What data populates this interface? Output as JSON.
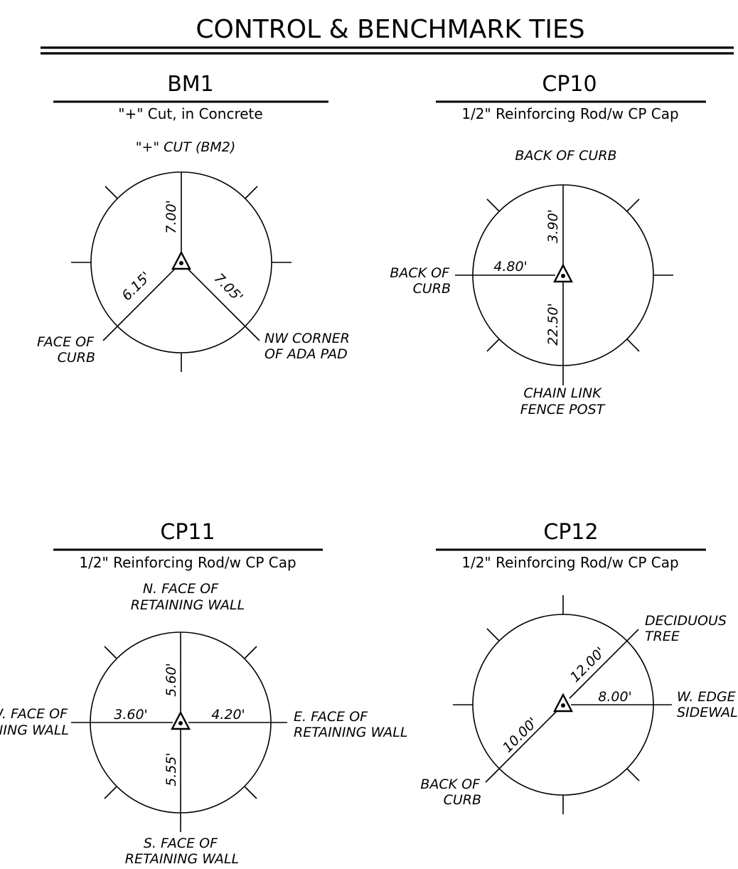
{
  "title": "CONTROL & BENCHMARK TIES",
  "panels": {
    "bm1": {
      "name": "BM1",
      "subtitle": "\"+\" Cut, in Concrete",
      "top_label": "\"+\" CUT (BM2)",
      "left_label": [
        "FACE OF",
        "CURB"
      ],
      "right_label": [
        "NW CORNER",
        "OF ADA PAD"
      ],
      "dist_up": "7.00'",
      "dist_left": "6.15'",
      "dist_right": "7.05'"
    },
    "cp10": {
      "name": "CP10",
      "subtitle": "1/2\" Reinforcing Rod/w CP Cap",
      "top_label": "BACK OF CURB",
      "left_label": [
        "BACK OF",
        "CURB"
      ],
      "bottom_label": [
        "CHAIN LINK",
        "FENCE POST"
      ],
      "dist_up": "3.90'",
      "dist_left": "4.80'",
      "dist_down": "22.50'"
    },
    "cp11": {
      "name": "CP11",
      "subtitle": "1/2\" Reinforcing Rod/w CP Cap",
      "top_label": [
        "N. FACE OF",
        "RETAINING WALL"
      ],
      "left_label": [
        "W. FACE OF",
        "RETAINING WALL"
      ],
      "right_label": [
        "E. FACE OF",
        "RETAINING WALL"
      ],
      "bottom_label": [
        "S. FACE OF",
        "RETAINING WALL"
      ],
      "dist_up": "5.60'",
      "dist_left": "3.60'",
      "dist_right": "4.20'",
      "dist_down": "5.55'"
    },
    "cp12": {
      "name": "CP12",
      "subtitle": "1/2\" Reinforcing Rod/w CP Cap",
      "ne_label": [
        "DECIDUOUS",
        "TREE"
      ],
      "right_label": [
        "W. EDGE OF",
        "SIDEWALK"
      ],
      "sw_label": [
        "BACK OF",
        "CURB"
      ],
      "dist_ne": "12.00'",
      "dist_right": "8.00'",
      "dist_sw": "10.00'"
    }
  }
}
